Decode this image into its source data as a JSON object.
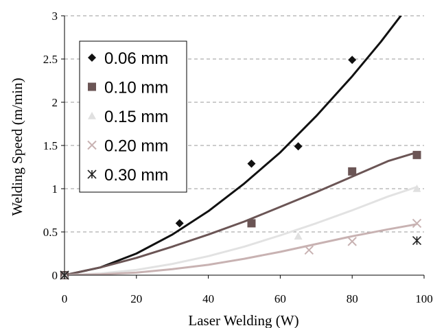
{
  "chart_data": {
    "type": "scatter",
    "xlabel": "Laser Welding (W)",
    "ylabel": "Welding Speed (m/min)",
    "xlim": [
      0,
      100
    ],
    "ylim": [
      0,
      3
    ],
    "x_ticks": [
      "0",
      "20",
      "40",
      "60",
      "80",
      "100"
    ],
    "y_ticks": [
      "0",
      "0.5",
      "1",
      "1.5",
      "2",
      "2.5",
      "3"
    ],
    "grid": "horizontal dashed",
    "legend_position": "top-left",
    "series": [
      {
        "name": "0.06 mm",
        "marker": "diamond",
        "color": "#111111",
        "points": [
          [
            0,
            0
          ],
          [
            32,
            0.6
          ],
          [
            52,
            1.29
          ],
          [
            65,
            1.49
          ],
          [
            80,
            2.49
          ]
        ],
        "trend": [
          [
            0,
            0
          ],
          [
            10,
            0.09
          ],
          [
            20,
            0.25
          ],
          [
            30,
            0.47
          ],
          [
            40,
            0.74
          ],
          [
            50,
            1.06
          ],
          [
            60,
            1.42
          ],
          [
            70,
            1.84
          ],
          [
            80,
            2.3
          ],
          [
            88,
            2.7
          ],
          [
            95,
            3.08
          ]
        ]
      },
      {
        "name": "0.10 mm",
        "marker": "square",
        "color": "#6b5555",
        "points": [
          [
            0,
            0
          ],
          [
            52,
            0.6
          ],
          [
            80,
            1.2
          ],
          [
            98,
            1.39
          ]
        ],
        "trend": [
          [
            0,
            0
          ],
          [
            10,
            0.09
          ],
          [
            20,
            0.2
          ],
          [
            30,
            0.33
          ],
          [
            40,
            0.47
          ],
          [
            50,
            0.62
          ],
          [
            60,
            0.79
          ],
          [
            70,
            0.96
          ],
          [
            80,
            1.14
          ],
          [
            90,
            1.32
          ],
          [
            98,
            1.42
          ]
        ]
      },
      {
        "name": "0.15 mm",
        "marker": "triangle",
        "color": "#e6e6e6",
        "points": [
          [
            0,
            0
          ],
          [
            65,
            0.45
          ],
          [
            98,
            1.0
          ]
        ],
        "trend": [
          [
            0,
            0
          ],
          [
            10,
            0.02
          ],
          [
            20,
            0.06
          ],
          [
            30,
            0.13
          ],
          [
            40,
            0.22
          ],
          [
            50,
            0.33
          ],
          [
            60,
            0.46
          ],
          [
            70,
            0.6
          ],
          [
            80,
            0.75
          ],
          [
            90,
            0.91
          ],
          [
            98,
            1.02
          ]
        ]
      },
      {
        "name": "0.20 mm",
        "marker": "x",
        "color": "#c8b2b2",
        "points": [
          [
            0,
            0
          ],
          [
            68,
            0.29
          ],
          [
            80,
            0.39
          ],
          [
            98,
            0.6
          ]
        ],
        "trend": [
          [
            0,
            0
          ],
          [
            10,
            0.01
          ],
          [
            20,
            0.03
          ],
          [
            30,
            0.07
          ],
          [
            40,
            0.12
          ],
          [
            50,
            0.19
          ],
          [
            60,
            0.27
          ],
          [
            70,
            0.36
          ],
          [
            80,
            0.45
          ],
          [
            90,
            0.53
          ],
          [
            98,
            0.59
          ]
        ]
      },
      {
        "name": "0.30 mm",
        "marker": "asterisk",
        "color": "#222222",
        "points": [
          [
            0,
            0
          ],
          [
            98,
            0.4
          ]
        ],
        "trend": []
      }
    ]
  }
}
